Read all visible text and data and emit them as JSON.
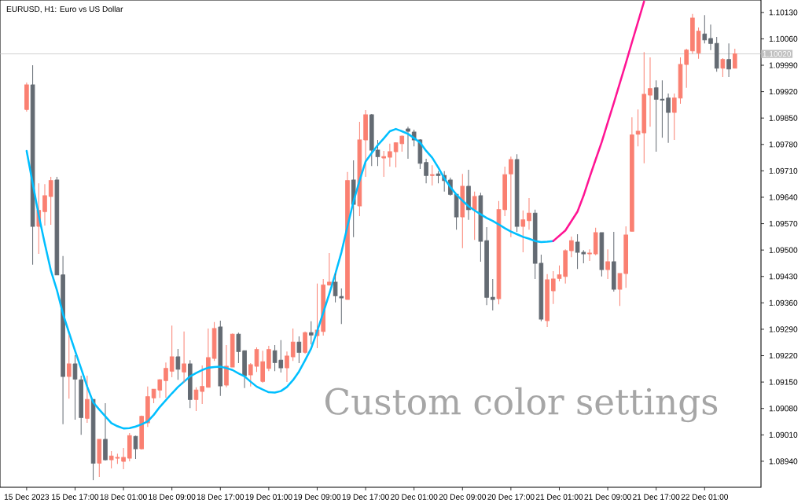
{
  "chart_data": {
    "type": "candlestick",
    "title": "EURUSD, H1: Euro vs US Dollar",
    "annotations": [
      "Custom color settings"
    ],
    "categories": [
      "15 Dec 2023",
      null,
      null,
      null,
      null,
      null,
      null,
      null,
      "15 Dec 17:00",
      null,
      null,
      null,
      null,
      null,
      null,
      null,
      "18 Dec 01:00",
      null,
      null,
      null,
      null,
      null,
      null,
      null,
      "18 Dec 09:00",
      null,
      null,
      null,
      null,
      null,
      null,
      null,
      "18 Dec 17:00",
      null,
      null,
      null,
      null,
      null,
      null,
      null,
      "19 Dec 01:00",
      null,
      null,
      null,
      null,
      null,
      null,
      null,
      "19 Dec 09:00",
      null,
      null,
      null,
      null,
      null,
      null,
      null,
      "19 Dec 17:00",
      null,
      null,
      null,
      null,
      null,
      null,
      null,
      "20 Dec 01:00",
      null,
      null,
      null,
      null,
      null,
      null,
      null,
      "20 Dec 09:00",
      null,
      null,
      null,
      null,
      null,
      null,
      null,
      "20 Dec 17:00",
      null,
      null,
      null,
      null,
      null,
      null,
      null,
      "21 Dec 01:00",
      null,
      null,
      null,
      null,
      null,
      null,
      null,
      "21 Dec 09:00",
      null,
      null,
      null,
      null,
      null,
      null,
      null,
      "21 Dec 17:00",
      null,
      null,
      null,
      null,
      null,
      null,
      null,
      "22 Dec 01:00",
      null,
      null,
      null,
      null,
      null
    ],
    "ohlc": [
      [
        1.09873,
        1.09944,
        1.09867,
        1.09938
      ],
      [
        1.09938,
        1.0999,
        1.09461,
        1.09563
      ],
      [
        1.09563,
        1.09677,
        1.0949,
        1.09605
      ],
      [
        1.09602,
        1.09675,
        1.09565,
        1.09644
      ],
      [
        1.09642,
        1.09694,
        1.09567,
        1.09684
      ],
      [
        1.09686,
        1.09694,
        1.09434,
        1.09434
      ],
      [
        1.09434,
        1.09484,
        1.09038,
        1.09165
      ],
      [
        1.09165,
        1.09275,
        1.09106,
        1.09198
      ],
      [
        1.09198,
        1.09221,
        1.0905,
        1.09158
      ],
      [
        1.09156,
        1.09167,
        1.0901,
        1.09056
      ],
      [
        1.09054,
        1.09167,
        1.09042,
        1.09104
      ],
      [
        1.09104,
        1.09104,
        1.0889,
        1.08935
      ],
      [
        1.08935,
        1.08998,
        1.08898,
        1.08998
      ],
      [
        1.08998,
        1.09094,
        1.08942,
        1.08944
      ],
      [
        1.08944,
        1.08967,
        1.08921,
        1.08954
      ],
      [
        1.08948,
        1.0896,
        1.08933,
        1.0895
      ],
      [
        1.0894,
        1.08975,
        1.08919,
        1.0895
      ],
      [
        1.08948,
        1.09015,
        1.0894,
        1.09008
      ],
      [
        1.09006,
        1.09008,
        1.08946,
        1.08973
      ],
      [
        1.08973,
        1.09061,
        1.08971,
        1.09059
      ],
      [
        1.09042,
        1.09138,
        1.09031,
        1.09111
      ],
      [
        1.09108,
        1.09131,
        1.09094,
        1.09131
      ],
      [
        1.09129,
        1.09158,
        1.09108,
        1.09156
      ],
      [
        1.09154,
        1.09202,
        1.09108,
        1.09186
      ],
      [
        1.09179,
        1.093,
        1.09163,
        1.09217
      ],
      [
        1.09217,
        1.09238,
        1.09156,
        1.09184
      ],
      [
        1.09177,
        1.09284,
        1.09148,
        1.09198
      ],
      [
        1.09198,
        1.09208,
        1.09081,
        1.09104
      ],
      [
        1.09104,
        1.09136,
        1.09073,
        1.09129
      ],
      [
        1.09125,
        1.09194,
        1.09092,
        1.09138
      ],
      [
        1.09136,
        1.09292,
        1.09136,
        1.09215
      ],
      [
        1.09213,
        1.09309,
        1.09206,
        1.09292
      ],
      [
        1.09296,
        1.09313,
        1.09113,
        1.0914
      ],
      [
        1.09142,
        1.09248,
        1.09136,
        1.09192
      ],
      [
        1.0919,
        1.09279,
        1.0919,
        1.09277
      ],
      [
        1.09277,
        1.09281,
        1.092,
        1.09231
      ],
      [
        1.09233,
        1.09233,
        1.09134,
        1.09167
      ],
      [
        1.09169,
        1.092,
        1.09138,
        1.09196
      ],
      [
        1.09192,
        1.09242,
        1.09177,
        1.09236
      ],
      [
        1.09152,
        1.09233,
        1.09148,
        1.09204
      ],
      [
        1.09186,
        1.09246,
        1.09179,
        1.09236
      ],
      [
        1.09233,
        1.09248,
        1.09179,
        1.09202
      ],
      [
        1.09208,
        1.09261,
        1.09175,
        1.09188
      ],
      [
        1.09188,
        1.09231,
        1.0915,
        1.09219
      ],
      [
        1.09217,
        1.09292,
        1.09206,
        1.09256
      ],
      [
        1.09256,
        1.09271,
        1.092,
        1.09229
      ],
      [
        1.09229,
        1.09284,
        1.09225,
        1.09281
      ],
      [
        1.09281,
        1.09311,
        1.0925,
        1.09275
      ],
      [
        1.09273,
        1.09411,
        1.0924,
        1.09288
      ],
      [
        1.09284,
        1.09423,
        1.09273,
        1.09407
      ],
      [
        1.09407,
        1.09492,
        1.09407,
        1.09415
      ],
      [
        1.09415,
        1.09438,
        1.09361,
        1.09379
      ],
      [
        1.09377,
        1.09398,
        1.09304,
        1.09373
      ],
      [
        1.09369,
        1.09707,
        1.09369,
        1.09684
      ],
      [
        1.09686,
        1.09738,
        1.09534,
        1.09621
      ],
      [
        1.09617,
        1.0984,
        1.0959,
        1.09792
      ],
      [
        1.09792,
        1.09871,
        1.09694,
        1.09859
      ],
      [
        1.09859,
        1.09861,
        1.09723,
        1.09765
      ],
      [
        1.09765,
        1.09792,
        1.09723,
        1.09748
      ],
      [
        1.09744,
        1.09763,
        1.09694,
        1.09748
      ],
      [
        1.09746,
        1.09782,
        1.09721,
        1.09761
      ],
      [
        1.09761,
        1.09786,
        1.09719,
        1.09784
      ],
      [
        1.09782,
        1.09804,
        1.09761,
        1.09802
      ],
      [
        1.09821,
        1.09827,
        1.09742,
        1.09815
      ],
      [
        1.09813,
        1.09819,
        1.09775,
        1.09792
      ],
      [
        1.09792,
        1.09794,
        1.09715,
        1.0973
      ],
      [
        1.09732,
        1.09742,
        1.09677,
        1.09698
      ],
      [
        1.09698,
        1.09725,
        1.09671,
        1.097
      ],
      [
        1.09702,
        1.09709,
        1.09677,
        1.09698
      ],
      [
        1.09698,
        1.09709,
        1.09655,
        1.09684
      ],
      [
        1.09686,
        1.09692,
        1.09644,
        1.09648
      ],
      [
        1.09648,
        1.0965,
        1.09554,
        1.09588
      ],
      [
        1.09588,
        1.09702,
        1.09505,
        1.09669
      ],
      [
        1.09669,
        1.09713,
        1.0958,
        1.09607
      ],
      [
        1.09607,
        1.09655,
        1.09527,
        1.09642
      ],
      [
        1.09644,
        1.09652,
        1.09469,
        1.09523
      ],
      [
        1.09525,
        1.09561,
        1.09354,
        1.09375
      ],
      [
        1.09375,
        1.09423,
        1.0934,
        1.09369
      ],
      [
        1.09371,
        1.0963,
        1.09356,
        1.09607
      ],
      [
        1.09607,
        1.09721,
        1.0959,
        1.097
      ],
      [
        1.09702,
        1.09748,
        1.09534,
        1.0974
      ],
      [
        1.0974,
        1.09754,
        1.09548,
        1.09563
      ],
      [
        1.09563,
        1.09605,
        1.09494,
        1.0958
      ],
      [
        1.09578,
        1.09638,
        1.09554,
        1.09598
      ],
      [
        1.09598,
        1.09607,
        1.09423,
        1.09465
      ],
      [
        1.09465,
        1.09488,
        1.09311,
        1.09317
      ],
      [
        1.09313,
        1.09436,
        1.09296,
        1.09421
      ],
      [
        1.09392,
        1.09444,
        1.09357,
        1.09423
      ],
      [
        1.09425,
        1.09459,
        1.09417,
        1.09434
      ],
      [
        1.0943,
        1.09502,
        1.09411,
        1.09498
      ],
      [
        1.09498,
        1.09536,
        1.09481,
        1.09525
      ],
      [
        1.09521,
        1.09542,
        1.0945,
        1.09494
      ],
      [
        1.09494,
        1.095,
        1.09465,
        1.0949
      ],
      [
        1.0949,
        1.09502,
        1.09471,
        1.09492
      ],
      [
        1.0949,
        1.09559,
        1.09486,
        1.09546
      ],
      [
        1.09546,
        1.09546,
        1.0943,
        1.09448
      ],
      [
        1.09448,
        1.09502,
        1.09423,
        1.09469
      ],
      [
        1.09469,
        1.09548,
        1.0939,
        1.09396
      ],
      [
        1.09396,
        1.09438,
        1.09352,
        1.09438
      ],
      [
        1.09438,
        1.09563,
        1.094,
        1.0954
      ],
      [
        1.0955,
        1.09852,
        1.0955,
        1.09805
      ],
      [
        1.09807,
        1.09873,
        1.09775,
        1.09815
      ],
      [
        1.09811,
        1.10025,
        1.0973,
        1.09913
      ],
      [
        1.09911,
        1.10011,
        1.09827,
        1.09928
      ],
      [
        1.0993,
        1.0995,
        1.09761,
        1.099
      ],
      [
        1.099,
        1.0995,
        1.09798,
        1.09898
      ],
      [
        1.09903,
        1.09915,
        1.09784,
        1.09865
      ],
      [
        1.09865,
        1.09915,
        1.09792,
        1.09903
      ],
      [
        1.09903,
        1.10011,
        1.09888,
        1.09992
      ],
      [
        1.09992,
        1.10034,
        1.0993,
        1.1003
      ],
      [
        1.10028,
        1.10126,
        1.10021,
        1.10115
      ],
      [
        1.10023,
        1.1009,
        1.10007,
        1.1008
      ],
      [
        1.10073,
        1.10123,
        1.10048,
        1.10057
      ],
      [
        1.10061,
        1.10098,
        1.1003,
        1.10048
      ],
      [
        1.10048,
        1.10065,
        1.09973,
        1.09982
      ],
      [
        1.09982,
        1.10009,
        1.09959,
        1.10005
      ],
      [
        1.10005,
        1.10048,
        1.09959,
        1.0998
      ],
      [
        1.09982,
        1.10034,
        1.09982,
        1.1002
      ]
    ],
    "colors": [
      "#fa8072",
      "#646b73",
      "#fa8072",
      "#fa8072",
      "#fa8072",
      "#646b73",
      "#646b73",
      "#fa8072",
      "#646b73",
      "#646b73",
      "#fa8072",
      "#646b73",
      "#fa8072",
      "#646b73",
      "#fa8072",
      "#fa8072",
      "#fa8072",
      "#fa8072",
      "#646b73",
      "#fa8072",
      "#fa8072",
      "#fa8072",
      "#fa8072",
      "#fa8072",
      "#fa8072",
      "#646b73",
      "#fa8072",
      "#646b73",
      "#fa8072",
      "#fa8072",
      "#fa8072",
      "#fa8072",
      "#646b73",
      "#fa8072",
      "#fa8072",
      "#646b73",
      "#646b73",
      "#fa8072",
      "#fa8072",
      "#fa8072",
      "#fa8072",
      "#646b73",
      "#646b73",
      "#fa8072",
      "#fa8072",
      "#646b73",
      "#fa8072",
      "#646b73",
      "#fa8072",
      "#fa8072",
      "#fa8072",
      "#646b73",
      "#646b73",
      "#fa8072",
      "#646b73",
      "#fa8072",
      "#fa8072",
      "#646b73",
      "#646b73",
      "#fa8072",
      "#fa8072",
      "#fa8072",
      "#fa8072",
      "#646b73",
      "#646b73",
      "#646b73",
      "#646b73",
      "#fa8072",
      "#646b73",
      "#646b73",
      "#646b73",
      "#646b73",
      "#fa8072",
      "#646b73",
      "#fa8072",
      "#646b73",
      "#646b73",
      "#646b73",
      "#fa8072",
      "#fa8072",
      "#fa8072",
      "#646b73",
      "#fa8072",
      "#fa8072",
      "#646b73",
      "#646b73",
      "#fa8072",
      "#fa8072",
      "#fa8072",
      "#fa8072",
      "#fa8072",
      "#646b73",
      "#646b73",
      "#fa8072",
      "#fa8072",
      "#646b73",
      "#fa8072",
      "#646b73",
      "#fa8072",
      "#fa8072",
      "#fa8072",
      "#fa8072",
      "#fa8072",
      "#fa8072",
      "#646b73",
      "#646b73",
      "#646b73",
      "#fa8072",
      "#fa8072",
      "#fa8072",
      "#fa8072",
      "#fa8072",
      "#646b73",
      "#646b73",
      "#646b73",
      "#fa8072",
      "#646b73",
      "#fa8072"
    ],
    "series": [
      {
        "type": "line",
        "color": "#00bfff",
        "values": [
          1.09763,
          1.09677,
          1.09592,
          1.09517,
          1.09446,
          1.09394,
          1.09331,
          1.09281,
          1.09233,
          1.09186,
          1.09138,
          1.09096,
          1.09077,
          1.09059,
          1.09041,
          1.09033,
          1.09027,
          1.09028,
          1.09032,
          1.09038,
          1.09046,
          1.09063,
          1.09084,
          1.09102,
          1.0912,
          1.09137,
          1.09151,
          1.09165,
          1.09174,
          1.09182,
          1.09188,
          1.0919,
          1.09191,
          1.09187,
          1.09182,
          1.09173,
          1.09165,
          1.09151,
          1.09138,
          1.0913,
          1.09123,
          1.09122,
          1.09126,
          1.09137,
          1.09155,
          1.09178,
          1.09208,
          1.09239,
          1.09285,
          1.09334,
          1.09384,
          1.09437,
          1.09494,
          1.09563,
          1.09629,
          1.09684,
          1.09735,
          1.09757,
          1.09778,
          1.09796,
          1.09815,
          1.09821,
          1.09815,
          1.09808,
          1.09797,
          1.09785,
          1.09763,
          1.09745,
          1.09719,
          1.0969,
          1.09667,
          1.09647,
          1.09631,
          1.09616,
          1.09605,
          1.09595,
          1.09585,
          1.09577,
          1.09568,
          1.09558,
          1.09549,
          1.09542,
          1.09535,
          1.0953,
          1.09524,
          1.09521,
          1.09522,
          1.09524,
          null,
          null,
          null,
          null,
          null,
          null,
          null,
          null,
          null,
          null,
          null,
          null,
          null,
          null,
          null,
          null,
          null,
          null,
          null,
          null,
          null,
          null,
          null,
          null,
          null,
          null,
          null,
          null,
          null,
          null
        ]
      },
      {
        "type": "line",
        "color": "#ff1493",
        "values": [
          null,
          null,
          null,
          null,
          null,
          null,
          null,
          null,
          null,
          null,
          null,
          null,
          null,
          null,
          null,
          null,
          null,
          null,
          null,
          null,
          null,
          null,
          null,
          null,
          null,
          null,
          null,
          null,
          null,
          null,
          null,
          null,
          null,
          null,
          null,
          null,
          null,
          null,
          null,
          null,
          null,
          null,
          null,
          null,
          null,
          null,
          null,
          null,
          null,
          null,
          null,
          null,
          null,
          null,
          null,
          null,
          null,
          null,
          null,
          null,
          null,
          null,
          null,
          null,
          null,
          null,
          null,
          null,
          null,
          null,
          null,
          null,
          null,
          null,
          null,
          null,
          null,
          null,
          null,
          null,
          null,
          null,
          null,
          null,
          null,
          null,
          null,
          1.09524,
          1.09538,
          1.09552,
          1.09577,
          1.09602,
          1.09644,
          1.09693,
          1.0974,
          1.09786,
          1.09838,
          1.0989,
          1.09943,
          1.09996,
          1.10051,
          1.10105,
          1.10159,
          null,
          null,
          null,
          null,
          null,
          null,
          null,
          null,
          null,
          null,
          null,
          null,
          null,
          null,
          null
        ]
      }
    ],
    "ref_lines": [
      {
        "axis": "y",
        "value": 1.1002,
        "label": "1.10020",
        "color": "#c0c0c0"
      }
    ],
    "ylim": [
      1.08871,
      1.10163
    ],
    "yticks": [
      {
        "value": 1.0894,
        "label": "1.08940"
      },
      {
        "value": 1.0901,
        "label": "1.09010"
      },
      {
        "value": 1.0908,
        "label": "1.09080"
      },
      {
        "value": 1.0915,
        "label": "1.09150"
      },
      {
        "value": 1.0922,
        "label": "1.09220"
      },
      {
        "value": 1.0929,
        "label": "1.09290"
      },
      {
        "value": 1.0936,
        "label": "1.09360"
      },
      {
        "value": 1.0943,
        "label": "1.09430"
      },
      {
        "value": 1.095,
        "label": "1.09500"
      },
      {
        "value": 1.0957,
        "label": "1.09570"
      },
      {
        "value": 1.0964,
        "label": "1.09640"
      },
      {
        "value": 1.0971,
        "label": "1.09710"
      },
      {
        "value": 1.0978,
        "label": "1.09780"
      },
      {
        "value": 1.0985,
        "label": "1.09850"
      },
      {
        "value": 1.0992,
        "label": "1.09920"
      },
      {
        "value": 1.0999,
        "label": "1.09990"
      },
      {
        "value": 1.1006,
        "label": "1.10060"
      },
      {
        "value": 1.1013,
        "label": "1.10130"
      }
    ]
  }
}
